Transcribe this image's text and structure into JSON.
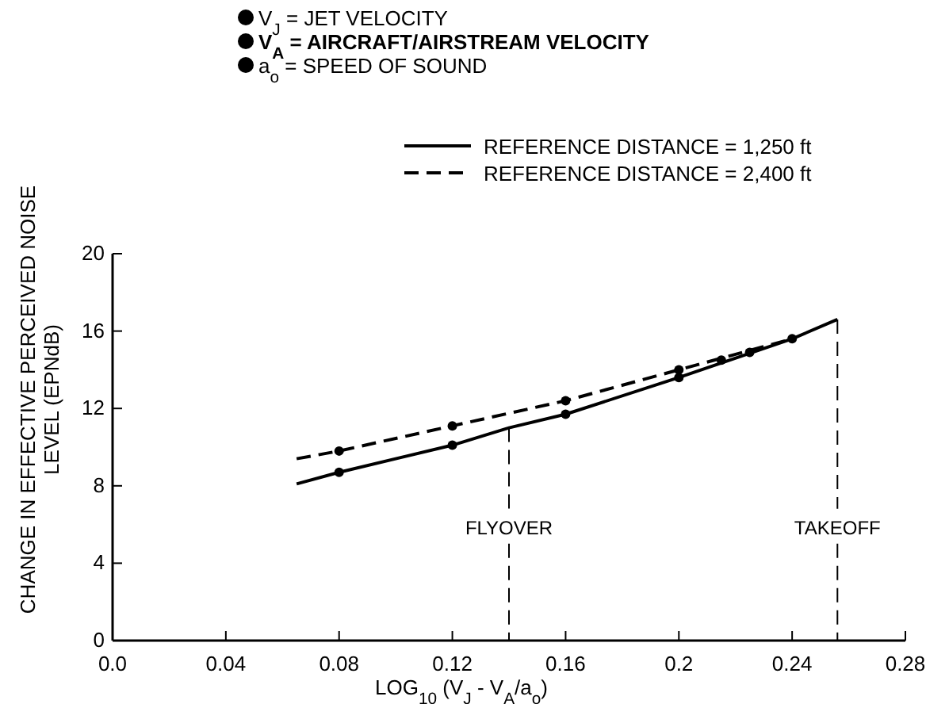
{
  "chart_data": {
    "type": "line",
    "xlabel": "LOG$_{10}$ (V$_{J}$ - V$_{A}$/a$_{o}$)",
    "ylabel": "CHANGE IN EFFECTIVE PERCEIVED NOISE LEVEL (EPNdB)",
    "annotations": [
      "V$_{J}$ = JET VELOCITY",
      "V$_{A}$ = AIRCRAFT/AIRSTREAM VELOCITY",
      "a$_{o}$ = SPEED OF SOUND"
    ],
    "series": [
      {
        "name": "REFERENCE DISTANCE = 1,250 ft",
        "color": "#000000",
        "line_style": "solid",
        "marker": "none",
        "x": [
          0.065,
          0.08,
          0.12,
          0.14,
          0.16,
          0.2,
          0.24,
          0.256
        ],
        "values": [
          8.1,
          8.7,
          10.1,
          11.0,
          11.7,
          13.6,
          15.6,
          16.6
        ]
      },
      {
        "name": "REFERENCE DISTANCE = 2,400 ft",
        "color": "#000000",
        "line_style": "dashed",
        "marker": "none",
        "x": [
          0.065,
          0.08,
          0.12,
          0.16,
          0.2,
          0.24
        ],
        "values": [
          9.4,
          9.8,
          11.1,
          12.4,
          14.0,
          15.6
        ]
      },
      {
        "type": "scatter",
        "color": "#000000",
        "marker": "circle",
        "x": [
          0.08,
          0.12,
          0.16,
          0.2,
          0.24
        ],
        "values": [
          8.7,
          10.1,
          11.7,
          13.6,
          15.6
        ]
      },
      {
        "type": "scatter",
        "color": "#000000",
        "marker": "circle",
        "x": [
          0.08,
          0.12,
          0.16,
          0.2,
          0.215,
          0.225
        ],
        "values": [
          9.8,
          11.1,
          12.4,
          14.0,
          14.5,
          14.9
        ]
      }
    ],
    "ref_lines": [
      {
        "axis": "x",
        "value": 0.14,
        "label": "FLYOVER",
        "line_style": "dashed"
      },
      {
        "axis": "x",
        "value": 0.256,
        "label": "TAKEOFF",
        "line_style": "dashed"
      }
    ],
    "xlim": [
      0,
      0.28
    ],
    "xticks": [
      {
        "value": 0,
        "label": "0.0"
      },
      0.04,
      0.08,
      0.12,
      0.16,
      0.2,
      0.24,
      0.28
    ],
    "ylim": [
      0,
      20
    ],
    "yticks": [
      0,
      4,
      8,
      12,
      16,
      20
    ],
    "grid": false,
    "legend": "top"
  }
}
